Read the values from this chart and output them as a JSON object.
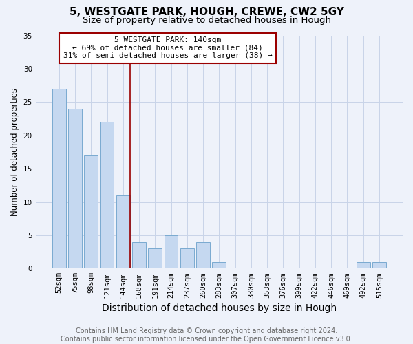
{
  "title": "5, WESTGATE PARK, HOUGH, CREWE, CW2 5GY",
  "subtitle": "Size of property relative to detached houses in Hough",
  "xlabel": "Distribution of detached houses by size in Hough",
  "ylabel": "Number of detached properties",
  "categories": [
    "52sqm",
    "75sqm",
    "98sqm",
    "121sqm",
    "144sqm",
    "168sqm",
    "191sqm",
    "214sqm",
    "237sqm",
    "260sqm",
    "283sqm",
    "307sqm",
    "330sqm",
    "353sqm",
    "376sqm",
    "399sqm",
    "422sqm",
    "446sqm",
    "469sqm",
    "492sqm",
    "515sqm"
  ],
  "values": [
    27,
    24,
    17,
    22,
    11,
    4,
    3,
    5,
    3,
    4,
    1,
    0,
    0,
    0,
    0,
    0,
    0,
    0,
    0,
    1,
    1
  ],
  "bar_color": "#c5d8f0",
  "bar_edge_color": "#7aaad0",
  "property_line_index": 4,
  "property_line_color": "#9b0000",
  "ylim": [
    0,
    35
  ],
  "yticks": [
    0,
    5,
    10,
    15,
    20,
    25,
    30,
    35
  ],
  "annotation_title": "5 WESTGATE PARK: 140sqm",
  "annotation_line1": "← 69% of detached houses are smaller (84)",
  "annotation_line2": "31% of semi-detached houses are larger (38) →",
  "annotation_box_color": "#ffffff",
  "annotation_box_edge": "#9b0000",
  "footer1": "Contains HM Land Registry data © Crown copyright and database right 2024.",
  "footer2": "Contains public sector information licensed under the Open Government Licence v3.0.",
  "background_color": "#eef2fa",
  "grid_color": "#c8d4e8",
  "title_fontsize": 11,
  "subtitle_fontsize": 9.5,
  "xlabel_fontsize": 10,
  "ylabel_fontsize": 8.5,
  "tick_fontsize": 7.5,
  "annotation_fontsize": 8,
  "footer_fontsize": 7
}
